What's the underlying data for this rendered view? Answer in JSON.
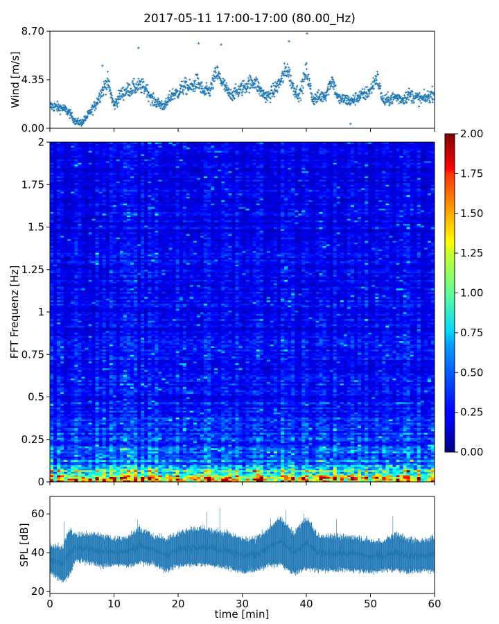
{
  "title": "2017-05-11 17:00-17:00 (80.00_Hz)",
  "chart_data": [
    {
      "panel": "wind",
      "type": "scatter",
      "ylabel": "Wind [m/s]",
      "ylim": [
        0,
        8.7
      ],
      "yticks": [
        "0.00",
        "4.35",
        "8.70"
      ],
      "xlim": [
        0,
        60
      ],
      "color": "#1f77b4",
      "series": [
        {
          "x": [
            0,
            2,
            3,
            4,
            5,
            6,
            7,
            8,
            9,
            10,
            11,
            12,
            13,
            14,
            15,
            16,
            17,
            18,
            19,
            20,
            21,
            22,
            23,
            24,
            25,
            26,
            27,
            28,
            29,
            30,
            31,
            32,
            33,
            34,
            35,
            36,
            37,
            38,
            39,
            40,
            41,
            42,
            43,
            44,
            45,
            46,
            47,
            48,
            49,
            50,
            51,
            52,
            53,
            54,
            55,
            56,
            57,
            58,
            59,
            60
          ],
          "y": [
            2.0,
            1.8,
            1.4,
            0.6,
            0.5,
            1.2,
            2.0,
            3.2,
            4.2,
            2.0,
            3.0,
            3.4,
            3.6,
            3.8,
            3.6,
            2.5,
            2.2,
            2.0,
            3.0,
            3.2,
            3.8,
            3.6,
            4.2,
            3.2,
            3.4,
            5.0,
            4.0,
            3.0,
            3.2,
            3.6,
            4.0,
            4.2,
            3.2,
            2.8,
            3.4,
            4.2,
            5.4,
            3.6,
            3.0,
            5.2,
            2.6,
            2.8,
            3.0,
            4.4,
            2.6,
            2.6,
            2.4,
            2.8,
            3.0,
            3.4,
            4.6,
            2.4,
            2.6,
            2.8,
            2.6,
            3.0,
            2.8,
            2.6,
            2.8,
            3.2
          ],
          "outliers": [
            [
              8.2,
              5.6
            ],
            [
              13.8,
              7.2
            ],
            [
              23.2,
              7.6
            ],
            [
              26.7,
              7.5
            ],
            [
              37.3,
              7.8
            ],
            [
              40.1,
              8.5
            ],
            [
              46.9,
              0.4
            ]
          ]
        }
      ]
    },
    {
      "panel": "spectrogram",
      "type": "heatmap",
      "ylabel": "FFT Frequenz [Hz]",
      "ylim": [
        0,
        2
      ],
      "yticks": [
        "0",
        "0.25",
        "0.5",
        "0.75",
        "1",
        "1.25",
        "1.5",
        "1.75",
        "2"
      ],
      "xlim": [
        0,
        60
      ],
      "colormap": "jet",
      "colorbar": {
        "vmin": 0,
        "vmax": 2,
        "ticks": [
          "0.00",
          "0.25",
          "0.50",
          "0.75",
          "1.00",
          "1.25",
          "1.50",
          "1.75",
          "2.00"
        ]
      },
      "mean_by_frequency": {
        "freq": [
          0,
          0.05,
          0.1,
          0.15,
          0.25,
          0.5,
          1.0,
          1.5,
          2.0
        ],
        "value": [
          1.8,
          0.9,
          0.55,
          0.42,
          0.35,
          0.28,
          0.24,
          0.22,
          0.2
        ]
      }
    },
    {
      "panel": "spl",
      "type": "area",
      "ylabel": "SPL [dB]",
      "xlabel": "time [min]",
      "ylim": [
        19,
        69
      ],
      "yticks": [
        "20",
        "40",
        "60"
      ],
      "xlim": [
        0,
        60
      ],
      "xticks": [
        "0",
        "10",
        "20",
        "30",
        "40",
        "50",
        "60"
      ],
      "color": "#1f77b4",
      "x": [
        0,
        2,
        3,
        4,
        6,
        8,
        10,
        12,
        14,
        16,
        18,
        20,
        22,
        24,
        26,
        28,
        30,
        32,
        34,
        36,
        38,
        40,
        42,
        44,
        46,
        48,
        50,
        52,
        54,
        56,
        58,
        60
      ],
      "lower": [
        30,
        25,
        28,
        36,
        35,
        33,
        34,
        33,
        35,
        34,
        31,
        33,
        34,
        34,
        33,
        32,
        30,
        31,
        33,
        34,
        29,
        32,
        31,
        31,
        31,
        31,
        30,
        31,
        31,
        30,
        31,
        30
      ],
      "upper": [
        44,
        43,
        52,
        49,
        50,
        49,
        47,
        48,
        53,
        49,
        47,
        50,
        52,
        53,
        51,
        50,
        47,
        47,
        52,
        58,
        50,
        58,
        48,
        49,
        48,
        48,
        46,
        46,
        50,
        47,
        46,
        48
      ],
      "spikes": [
        [
          2.2,
          56
        ],
        [
          13.7,
          57
        ],
        [
          24.5,
          61
        ],
        [
          26.5,
          63
        ],
        [
          34.4,
          58
        ],
        [
          36.8,
          62
        ],
        [
          39.6,
          60
        ],
        [
          44.7,
          57
        ],
        [
          53.5,
          59
        ]
      ]
    }
  ]
}
